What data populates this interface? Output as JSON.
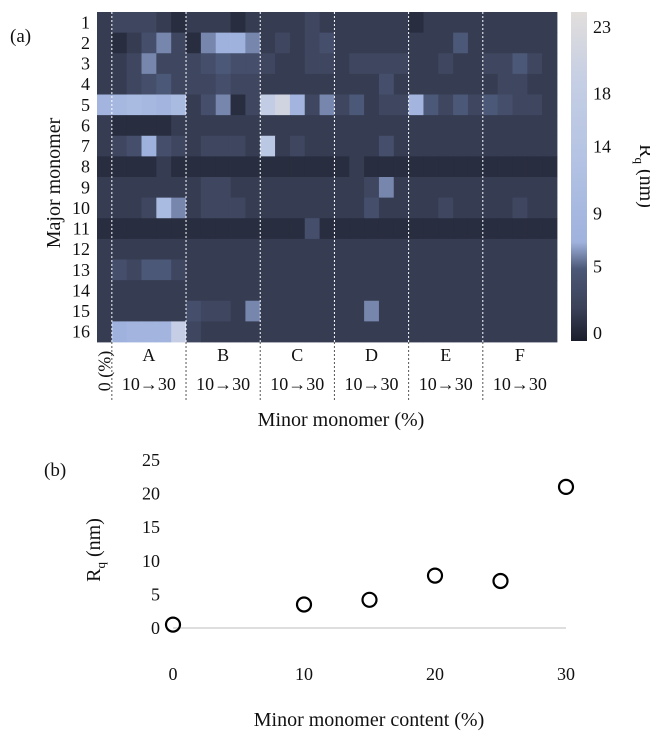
{
  "chart_data": [
    {
      "panel_label": "(a)",
      "type": "heatmap",
      "ylabel": "Major monomer",
      "xlabel": "Minor monomer (%)",
      "rows": [
        "1",
        "2",
        "3",
        "4",
        "5",
        "6",
        "7",
        "8",
        "9",
        "10",
        "11",
        "12",
        "13",
        "14",
        "15",
        "16"
      ],
      "column_groups": [
        {
          "label": "0 (%)",
          "count": 1,
          "range_label": ""
        },
        {
          "label": "A",
          "count": 5,
          "range_label": "10→30"
        },
        {
          "label": "B",
          "count": 5,
          "range_label": "10→30"
        },
        {
          "label": "C",
          "count": 5,
          "range_label": "10→30"
        },
        {
          "label": "D",
          "count": 5,
          "range_label": "10→30"
        },
        {
          "label": "E",
          "count": 5,
          "range_label": "10→30"
        },
        {
          "label": "F",
          "count": 5,
          "range_label": "10→30"
        }
      ],
      "colorbar": {
        "label": "Rq (nm)",
        "label_main": "R",
        "label_sub": "q",
        "label_unit": " (nm)",
        "ticks": [
          23,
          18,
          14,
          9,
          5,
          0
        ],
        "range": [
          0,
          23
        ]
      },
      "values": [
        [
          2,
          3,
          3,
          3,
          2,
          1,
          2,
          2,
          2,
          1,
          2,
          2,
          2,
          2,
          3,
          2,
          2,
          2,
          2,
          2,
          2,
          1,
          2,
          2,
          2,
          2,
          2,
          2,
          2,
          2,
          2
        ],
        [
          2,
          1,
          2,
          4,
          6,
          3,
          1,
          6,
          7,
          7,
          6,
          2,
          3,
          2,
          3,
          4,
          2,
          2,
          2,
          2,
          2,
          2,
          2,
          2,
          5,
          2,
          2,
          2,
          2,
          2,
          2
        ],
        [
          2,
          2,
          3,
          6,
          3,
          3,
          3,
          4,
          5,
          4,
          4,
          3,
          2,
          2,
          3,
          3,
          2,
          3,
          3,
          3,
          3,
          2,
          2,
          3,
          2,
          2,
          3,
          3,
          5,
          3,
          2
        ],
        [
          2,
          2,
          3,
          4,
          5,
          3,
          3,
          3,
          4,
          3,
          3,
          2,
          2,
          2,
          2,
          2,
          2,
          2,
          2,
          4,
          2,
          2,
          2,
          2,
          2,
          2,
          2,
          3,
          3,
          2,
          2
        ],
        [
          8,
          9,
          10,
          9,
          8,
          10,
          2,
          4,
          6,
          1,
          3,
          17,
          20,
          8,
          3,
          6,
          3,
          5,
          2,
          3,
          3,
          8,
          5,
          3,
          5,
          3,
          5,
          4,
          3,
          3,
          2
        ],
        [
          2,
          1,
          1,
          1,
          1,
          2,
          2,
          2,
          2,
          2,
          2,
          2,
          2,
          2,
          2,
          2,
          2,
          2,
          2,
          2,
          2,
          2,
          2,
          2,
          2,
          2,
          2,
          2,
          2,
          2,
          2
        ],
        [
          2,
          3,
          4,
          7,
          4,
          3,
          2,
          3,
          3,
          3,
          2,
          15,
          2,
          3,
          2,
          2,
          2,
          2,
          2,
          4,
          2,
          2,
          2,
          2,
          2,
          2,
          2,
          2,
          2,
          2,
          2
        ],
        [
          1,
          1,
          1,
          1,
          2,
          1,
          1,
          1,
          1,
          1,
          1,
          1,
          1,
          1,
          1,
          1,
          1,
          2,
          1,
          1,
          1,
          1,
          1,
          1,
          1,
          1,
          1,
          1,
          1,
          1,
          1
        ],
        [
          2,
          2,
          2,
          2,
          2,
          2,
          2,
          3,
          3,
          2,
          2,
          2,
          2,
          2,
          2,
          2,
          2,
          2,
          3,
          6,
          2,
          2,
          2,
          2,
          2,
          2,
          2,
          2,
          2,
          2,
          2
        ],
        [
          2,
          2,
          2,
          3,
          10,
          6,
          2,
          3,
          3,
          3,
          2,
          2,
          2,
          2,
          2,
          2,
          2,
          2,
          4,
          2,
          2,
          2,
          2,
          3,
          2,
          2,
          2,
          2,
          3,
          2,
          2
        ],
        [
          1,
          1,
          1,
          1,
          1,
          1,
          1,
          1,
          1,
          1,
          1,
          1,
          1,
          1,
          4,
          1,
          1,
          1,
          1,
          1,
          1,
          1,
          1,
          1,
          1,
          1,
          1,
          1,
          1,
          1,
          1
        ],
        [
          2,
          2,
          2,
          2,
          2,
          2,
          2,
          2,
          2,
          2,
          2,
          2,
          2,
          2,
          2,
          2,
          2,
          2,
          2,
          2,
          2,
          2,
          2,
          2,
          2,
          2,
          2,
          2,
          2,
          2,
          2
        ],
        [
          2,
          4,
          3,
          5,
          5,
          3,
          2,
          2,
          2,
          2,
          2,
          2,
          2,
          2,
          2,
          2,
          2,
          2,
          2,
          2,
          2,
          2,
          2,
          2,
          2,
          2,
          2,
          2,
          2,
          2,
          2
        ],
        [
          2,
          2,
          2,
          2,
          2,
          2,
          2,
          2,
          2,
          2,
          2,
          2,
          2,
          2,
          2,
          2,
          2,
          2,
          2,
          2,
          2,
          2,
          2,
          2,
          2,
          2,
          2,
          2,
          2,
          2,
          2
        ],
        [
          2,
          2,
          2,
          2,
          2,
          2,
          4,
          3,
          3,
          2,
          6,
          2,
          2,
          2,
          2,
          2,
          2,
          2,
          6,
          2,
          2,
          2,
          2,
          2,
          2,
          2,
          2,
          2,
          2,
          2,
          2
        ],
        [
          2,
          7,
          8,
          8,
          8,
          18,
          3,
          2,
          2,
          2,
          2,
          2,
          2,
          2,
          2,
          2,
          2,
          2,
          2,
          2,
          2,
          2,
          2,
          2,
          2,
          2,
          2,
          2,
          2,
          2,
          2
        ]
      ]
    },
    {
      "panel_label": "(b)",
      "type": "scatter",
      "xlabel": "Minor monomer content (%)",
      "ylabel": "Rq (nm)",
      "ylabel_main": "R",
      "ylabel_sub": "q",
      "ylabel_unit": " (nm)",
      "x": [
        0,
        10,
        15,
        20,
        25,
        30
      ],
      "y": [
        0.5,
        3.5,
        4.2,
        7.8,
        7.0,
        21.0
      ],
      "xticks": [
        0,
        10,
        20,
        30
      ],
      "yticks": [
        0,
        5,
        10,
        15,
        20,
        25
      ],
      "xlim": [
        0,
        30
      ],
      "ylim": [
        0,
        25
      ]
    }
  ]
}
